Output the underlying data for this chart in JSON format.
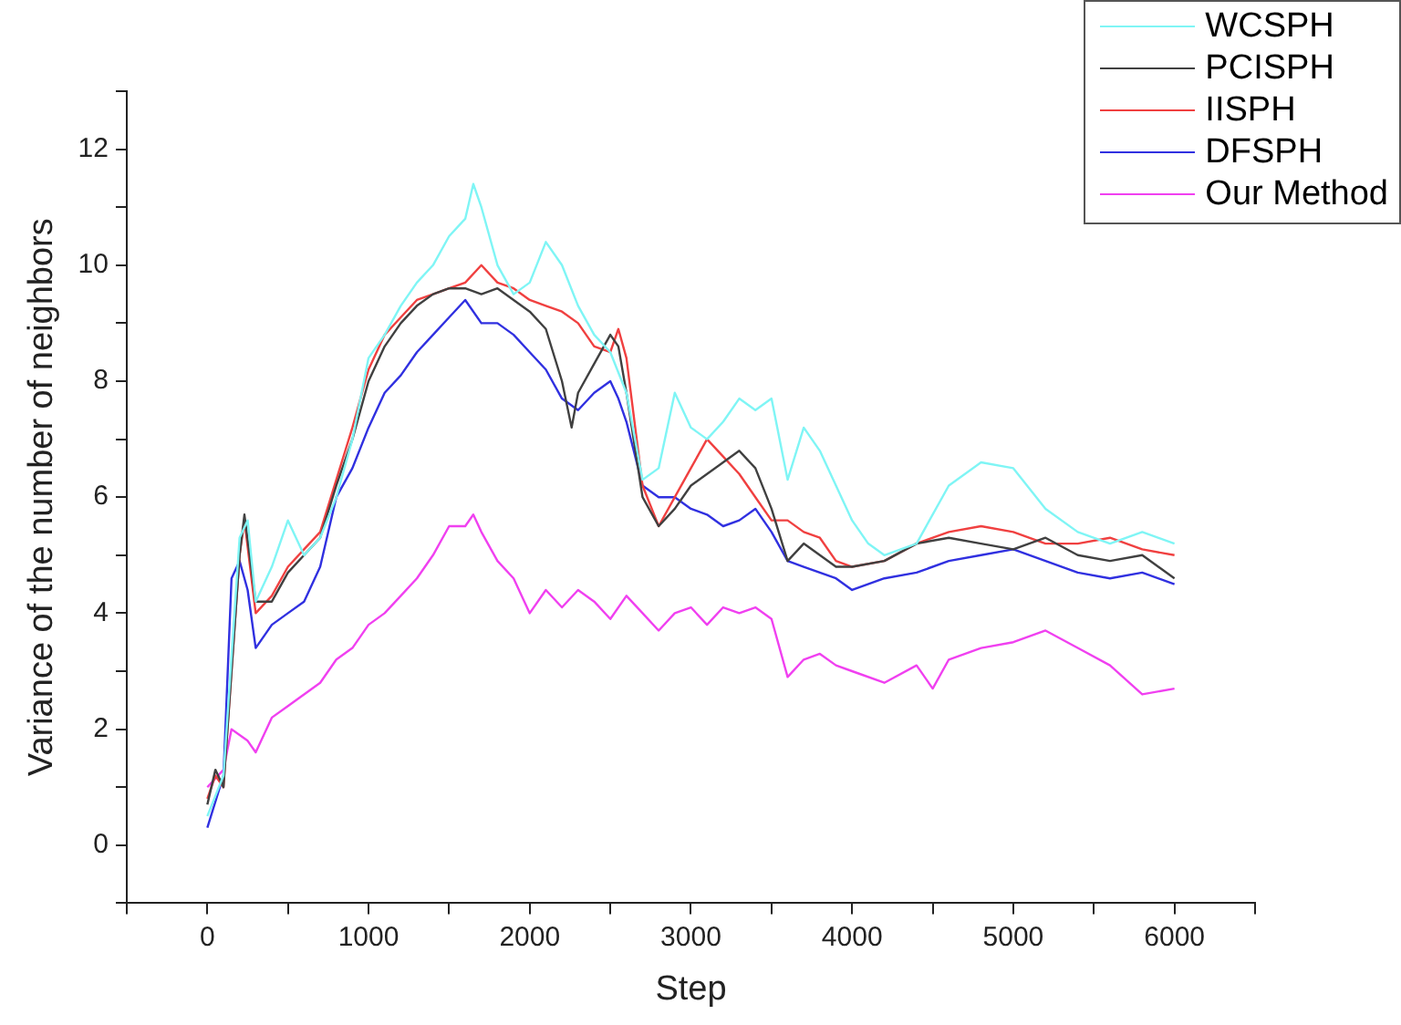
{
  "chart_data": {
    "type": "line",
    "xlabel": "Step",
    "ylabel": "Variance of the number of neighbors",
    "xlim": [
      -500,
      6500
    ],
    "ylim": [
      -1,
      13
    ],
    "xticks": [
      {
        "value": -500,
        "label": null
      },
      0,
      {
        "value": 500,
        "label": null
      },
      1000,
      {
        "value": 1500,
        "label": null
      },
      2000,
      {
        "value": 2500,
        "label": null
      },
      3000,
      {
        "value": 3500,
        "label": null
      },
      4000,
      {
        "value": 4500,
        "label": null
      },
      5000,
      {
        "value": 5500,
        "label": null
      },
      6000,
      {
        "value": 6500,
        "label": null
      }
    ],
    "yticks": [
      {
        "value": -1,
        "label": null
      },
      0,
      {
        "value": 1,
        "label": null
      },
      2,
      {
        "value": 3,
        "label": null
      },
      4,
      {
        "value": 5,
        "label": null
      },
      6,
      {
        "value": 7,
        "label": null
      },
      8,
      {
        "value": 9,
        "label": null
      },
      10,
      {
        "value": 11,
        "label": null
      },
      12,
      {
        "value": 13,
        "label": null
      }
    ],
    "grid": false,
    "legend": "top right",
    "marker": "none",
    "line_style": "solid",
    "series": [
      {
        "name": "WCSPH",
        "color": "#7ff5f5",
        "x": [
          0,
          100,
          200,
          250,
          300,
          400,
          500,
          600,
          700,
          800,
          900,
          1000,
          1100,
          1200,
          1300,
          1400,
          1500,
          1600,
          1650,
          1700,
          1800,
          1900,
          2000,
          2100,
          2200,
          2300,
          2400,
          2500,
          2600,
          2700,
          2800,
          2900,
          3000,
          3100,
          3200,
          3300,
          3400,
          3500,
          3600,
          3700,
          3800,
          3900,
          4000,
          4100,
          4200,
          4400,
          4600,
          4800,
          5000,
          5200,
          5400,
          5600,
          5800,
          6000
        ],
        "values": [
          0.5,
          1.2,
          5.3,
          5.6,
          4.2,
          4.8,
          5.6,
          5.0,
          5.3,
          6.0,
          7.0,
          8.4,
          8.8,
          9.3,
          9.7,
          10.0,
          10.5,
          10.8,
          11.4,
          11.0,
          10.0,
          9.5,
          9.7,
          10.4,
          10.0,
          9.3,
          8.8,
          8.5,
          7.8,
          6.3,
          6.5,
          7.8,
          7.2,
          7.0,
          7.3,
          7.7,
          7.5,
          7.7,
          6.3,
          7.2,
          6.8,
          6.2,
          5.6,
          5.2,
          5.0,
          5.2,
          6.2,
          6.6,
          6.5,
          5.8,
          5.4,
          5.2,
          5.4,
          5.2
        ]
      },
      {
        "name": "PCISPH",
        "color": "#404040",
        "x": [
          0,
          50,
          100,
          200,
          230,
          300,
          400,
          500,
          600,
          700,
          800,
          900,
          1000,
          1100,
          1200,
          1300,
          1400,
          1500,
          1600,
          1700,
          1800,
          1900,
          2000,
          2100,
          2200,
          2260,
          2300,
          2400,
          2500,
          2550,
          2600,
          2700,
          2800,
          2900,
          3000,
          3100,
          3200,
          3300,
          3400,
          3500,
          3600,
          3700,
          3800,
          3900,
          4000,
          4200,
          4400,
          4600,
          4800,
          5000,
          5200,
          5400,
          5600,
          5800,
          6000
        ],
        "values": [
          0.7,
          1.3,
          1.0,
          5.0,
          5.7,
          4.2,
          4.2,
          4.7,
          5.0,
          5.3,
          6.2,
          7.0,
          8.0,
          8.6,
          9.0,
          9.3,
          9.5,
          9.6,
          9.6,
          9.5,
          9.6,
          9.4,
          9.2,
          8.9,
          8.0,
          7.2,
          7.8,
          8.3,
          8.8,
          8.6,
          7.8,
          6.0,
          5.5,
          5.8,
          6.2,
          6.4,
          6.6,
          6.8,
          6.5,
          5.8,
          4.9,
          5.2,
          5.0,
          4.8,
          4.8,
          4.9,
          5.2,
          5.3,
          5.2,
          5.1,
          5.3,
          5.0,
          4.9,
          5.0,
          4.6
        ]
      },
      {
        "name": "IISPH",
        "color": "#f04040",
        "x": [
          0,
          50,
          100,
          200,
          230,
          300,
          400,
          500,
          600,
          700,
          800,
          900,
          1000,
          1100,
          1200,
          1300,
          1400,
          1500,
          1600,
          1700,
          1800,
          1900,
          2000,
          2100,
          2200,
          2300,
          2400,
          2500,
          2550,
          2600,
          2700,
          2800,
          2900,
          3000,
          3100,
          3200,
          3300,
          3400,
          3500,
          3600,
          3700,
          3800,
          3900,
          4000,
          4200,
          4400,
          4600,
          4800,
          5000,
          5200,
          5400,
          5600,
          5800,
          6000
        ],
        "values": [
          0.8,
          1.2,
          1.0,
          5.0,
          5.6,
          4.0,
          4.3,
          4.8,
          5.1,
          5.4,
          6.3,
          7.2,
          8.2,
          8.8,
          9.1,
          9.4,
          9.5,
          9.6,
          9.7,
          10.0,
          9.7,
          9.6,
          9.4,
          9.3,
          9.2,
          9.0,
          8.6,
          8.5,
          8.9,
          8.4,
          6.2,
          5.5,
          6.0,
          6.5,
          7.0,
          6.7,
          6.4,
          6.0,
          5.6,
          5.6,
          5.4,
          5.3,
          4.9,
          4.8,
          4.9,
          5.2,
          5.4,
          5.5,
          5.4,
          5.2,
          5.2,
          5.3,
          5.1,
          5.0
        ]
      },
      {
        "name": "DFSPH",
        "color": "#3030e0",
        "x": [
          0,
          100,
          150,
          200,
          250,
          300,
          400,
          500,
          600,
          700,
          800,
          900,
          1000,
          1100,
          1200,
          1300,
          1400,
          1500,
          1600,
          1700,
          1800,
          1900,
          2000,
          2100,
          2200,
          2300,
          2400,
          2500,
          2550,
          2600,
          2700,
          2800,
          2900,
          3000,
          3100,
          3200,
          3300,
          3400,
          3500,
          3600,
          3700,
          3800,
          3900,
          4000,
          4200,
          4400,
          4600,
          4800,
          5000,
          5200,
          5400,
          5600,
          5800,
          6000
        ],
        "values": [
          0.3,
          1.2,
          4.6,
          4.9,
          4.4,
          3.4,
          3.8,
          4.0,
          4.2,
          4.8,
          6.0,
          6.5,
          7.2,
          7.8,
          8.1,
          8.5,
          8.8,
          9.1,
          9.4,
          9.0,
          9.0,
          8.8,
          8.5,
          8.2,
          7.7,
          7.5,
          7.8,
          8.0,
          7.7,
          7.3,
          6.2,
          6.0,
          6.0,
          5.8,
          5.7,
          5.5,
          5.6,
          5.8,
          5.4,
          4.9,
          4.8,
          4.7,
          4.6,
          4.4,
          4.6,
          4.7,
          4.9,
          5.0,
          5.1,
          4.9,
          4.7,
          4.6,
          4.7,
          4.5
        ]
      },
      {
        "name": "Our Method",
        "color": "#f040f0",
        "x": [
          0,
          100,
          150,
          250,
          300,
          400,
          500,
          600,
          700,
          800,
          900,
          1000,
          1100,
          1200,
          1300,
          1400,
          1500,
          1600,
          1650,
          1700,
          1800,
          1900,
          2000,
          2100,
          2200,
          2300,
          2400,
          2500,
          2600,
          2700,
          2800,
          2900,
          3000,
          3100,
          3200,
          3300,
          3400,
          3500,
          3600,
          3700,
          3800,
          3900,
          4000,
          4200,
          4400,
          4500,
          4600,
          4800,
          5000,
          5200,
          5400,
          5600,
          5800,
          6000
        ],
        "values": [
          1.0,
          1.3,
          2.0,
          1.8,
          1.6,
          2.2,
          2.4,
          2.6,
          2.8,
          3.2,
          3.4,
          3.8,
          4.0,
          4.3,
          4.6,
          5.0,
          5.5,
          5.5,
          5.7,
          5.4,
          4.9,
          4.6,
          4.0,
          4.4,
          4.1,
          4.4,
          4.2,
          3.9,
          4.3,
          4.0,
          3.7,
          4.0,
          4.1,
          3.8,
          4.1,
          4.0,
          4.1,
          3.9,
          2.9,
          3.2,
          3.3,
          3.1,
          3.0,
          2.8,
          3.1,
          2.7,
          3.2,
          3.4,
          3.5,
          3.7,
          3.4,
          3.1,
          2.6,
          2.7
        ]
      }
    ]
  }
}
